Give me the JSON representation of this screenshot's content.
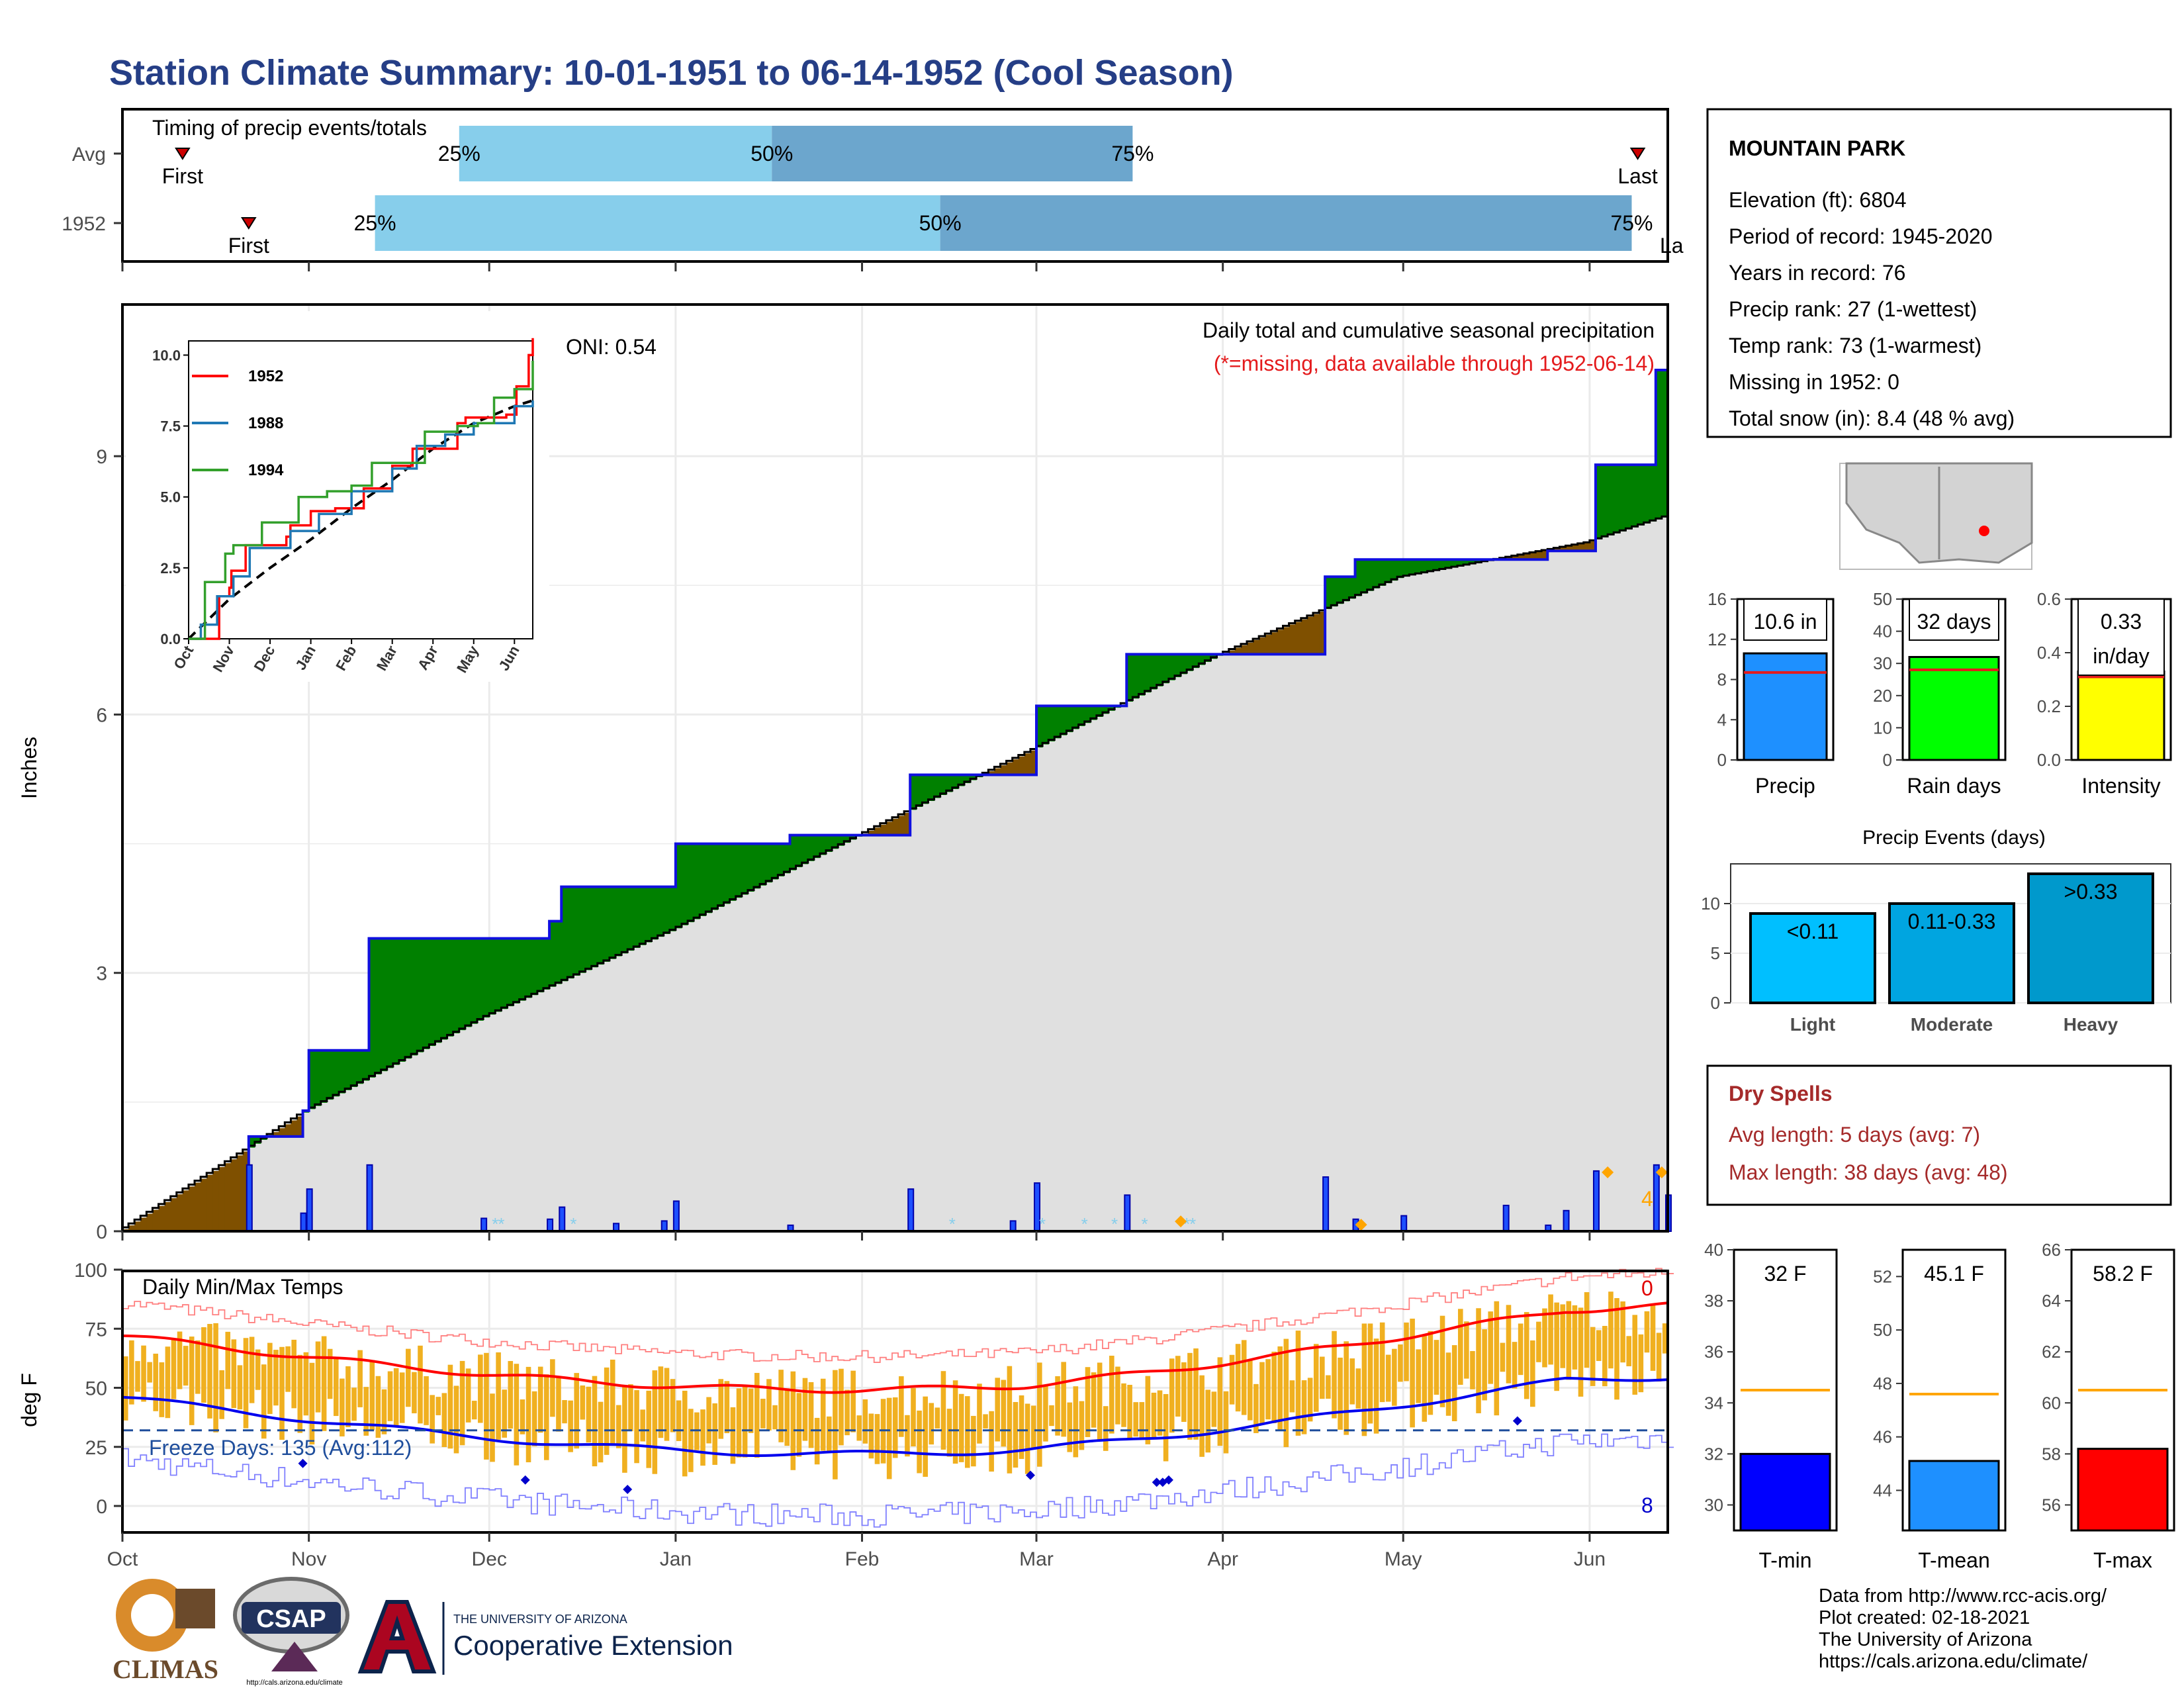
{
  "title": "Station Climate Summary: 10-01-1951 to 06-14-1952 (Cool Season)",
  "colors": {
    "title": "#253e86",
    "precip_obs": "#0000ff",
    "surplus": "#008000",
    "deficit": "#7f4f00",
    "clim": "#e0e0e0",
    "tmax": "#ff0000",
    "tmin": "#0000ff",
    "temp_bar": "#f0b020",
    "dry": "#a52a2a"
  },
  "timing": {
    "heading": "Timing of precip events/totals",
    "rows": [
      {
        "label": "Avg",
        "first": "First",
        "p25": "25%",
        "p50": "50%",
        "p75": "75%",
        "last": "Last",
        "first_day": 10,
        "p25_day": 56,
        "p50_day": 108,
        "p75_day": 168,
        "last_day": 252
      },
      {
        "label": "1952",
        "first": "First",
        "p25": "25%",
        "p50": "50%",
        "p75": "75%",
        "last": "Last",
        "first_day": 21,
        "p25_day": 42,
        "p50_day": 136,
        "p75_day": 251,
        "last_day": 261
      }
    ]
  },
  "precip": {
    "ylabel": "Inches",
    "note": "Daily total and cumulative seasonal precipitation",
    "missing_note": "(*=missing, data available through 1952-06-14)",
    "oni": "ONI: 0.54",
    "snow_note": "4",
    "yticks": [
      "0",
      "3",
      "6",
      "9"
    ],
    "months": [
      "Oct",
      "Nov",
      "Dec",
      "Jan",
      "Feb",
      "Mar",
      "Apr",
      "May",
      "Jun"
    ]
  },
  "inset": {
    "yticks": [
      "0.0",
      "2.5",
      "5.0",
      "7.5",
      "10.0"
    ],
    "months": [
      "Oct",
      "Nov",
      "Dec",
      "Jan",
      "Feb",
      "Mar",
      "Apr",
      "May",
      "Jun"
    ],
    "legend": [
      {
        "name": "1952",
        "color": "#ff0000"
      },
      {
        "name": "1988",
        "color": "#1f78b4"
      },
      {
        "name": "1994",
        "color": "#33a02c"
      }
    ]
  },
  "temps": {
    "ylabel": "deg F",
    "heading": "Daily Min/Max Temps",
    "freeze": "Freeze Days: 135 (Avg:112)",
    "max_count": "0",
    "min_count": "8",
    "yticks": [
      "0",
      "25",
      "50",
      "75",
      "100"
    ],
    "months": [
      "Oct",
      "Nov",
      "Dec",
      "Jan",
      "Feb",
      "Mar",
      "Apr",
      "May",
      "Jun"
    ]
  },
  "station": {
    "name": "MOUNTAIN PARK",
    "lines": [
      "Elevation (ft): 6804",
      "Period of record: 1945-2020",
      "Years in record: 76",
      "Precip rank: 27 (1-wettest)",
      "Temp rank: 73 (1-warmest)",
      "Missing in 1952: 0",
      "Total snow (in): 8.4 (48 % avg)"
    ]
  },
  "summary_bars": [
    {
      "name": "Precip",
      "label": "10.6 in",
      "value": 10.6,
      "avg": 8.7,
      "ymax": 16,
      "ticks": [
        "0",
        "4",
        "8",
        "12",
        "16"
      ],
      "color": "#1e90ff"
    },
    {
      "name": "Rain days",
      "label": "32 days",
      "value": 32,
      "avg": 28,
      "ymax": 50,
      "ticks": [
        "0",
        "10",
        "20",
        "30",
        "40",
        "50"
      ],
      "color": "#00ff00"
    },
    {
      "name": "Intensity",
      "label": "0.33",
      "label2": "in/day",
      "value": 0.33,
      "avg": 0.31,
      "ymax": 0.6,
      "ticks": [
        "0.0",
        "0.2",
        "0.4",
        "0.6"
      ],
      "color": "#ffff00"
    }
  ],
  "events": {
    "title": "Precip Events (days)",
    "ticks": [
      "0",
      "5",
      "10"
    ],
    "bars": [
      {
        "name": "Light",
        "label": "<0.11",
        "value": 9,
        "color": "#00bfff"
      },
      {
        "name": "Moderate",
        "label": "0.11-0.33",
        "value": 10,
        "color": "#00a5e0"
      },
      {
        "name": "Heavy",
        "label": ">0.33",
        "value": 13,
        "color": "#0099cc"
      }
    ]
  },
  "dry": {
    "title": "Dry Spells",
    "avg": "Avg length: 5 days (avg: 7)",
    "max": "Max length: 38 days (avg: 48)"
  },
  "temp_bars": [
    {
      "name": "T-min",
      "label": "32 F",
      "value": 32,
      "avg": 34.5,
      "ymin": 29,
      "ymax": 40,
      "ticks": [
        "30",
        "32",
        "34",
        "36",
        "38",
        "40"
      ],
      "color": "#0000ff"
    },
    {
      "name": "T-mean",
      "label": "45.1 F",
      "value": 45.1,
      "avg": 47.6,
      "ymin": 42.5,
      "ymax": 53,
      "ticks": [
        "44",
        "46",
        "48",
        "50",
        "52"
      ],
      "color": "#1e90ff"
    },
    {
      "name": "T-max",
      "label": "58.2 F",
      "value": 58.2,
      "avg": 60.5,
      "ymin": 55,
      "ymax": 66,
      "ticks": [
        "56",
        "58",
        "60",
        "62",
        "64",
        "66"
      ],
      "color": "#ff0000"
    }
  ],
  "credits": [
    "Data from http://www.rcc-acis.org/",
    "Plot created: 02-18-2021",
    "The University of Arizona",
    "https://cals.arizona.edu/climate/"
  ],
  "logos": {
    "climas": "CLIMAS",
    "csap": "CSAP",
    "csap_url": "http://cals.arizona.edu/climate",
    "ua_small": "THE UNIVERSITY OF ARIZONA",
    "ua_big": "Cooperative Extension"
  },
  "chart_data": {
    "type": "area",
    "title": "Daily total and cumulative seasonal precipitation",
    "ylabel": "Inches",
    "ylim": [
      0,
      10.6
    ],
    "x_dates_start": "1951-10-01",
    "cumulative_observed": [
      {
        "x": "1951-10-01",
        "y": 0.0
      },
      {
        "x": "1951-10-22",
        "y": 1.1
      },
      {
        "x": "1951-10-31",
        "y": 1.4
      },
      {
        "x": "1951-11-01",
        "y": 2.1
      },
      {
        "x": "1951-11-11",
        "y": 3.4
      },
      {
        "x": "1951-12-11",
        "y": 3.6
      },
      {
        "x": "1951-12-13",
        "y": 4.0
      },
      {
        "x": "1952-01-01",
        "y": 4.5
      },
      {
        "x": "1952-01-20",
        "y": 4.6
      },
      {
        "x": "1952-02-09",
        "y": 5.3
      },
      {
        "x": "1952-03-01",
        "y": 6.1
      },
      {
        "x": "1952-03-16",
        "y": 6.7
      },
      {
        "x": "1952-04-18",
        "y": 7.6
      },
      {
        "x": "1952-04-23",
        "y": 7.8
      },
      {
        "x": "1952-05-25",
        "y": 7.9
      },
      {
        "x": "1952-06-02",
        "y": 8.9
      },
      {
        "x": "1952-06-12",
        "y": 10.0
      },
      {
        "x": "1952-06-14",
        "y": 10.6
      }
    ],
    "cumulative_average": [
      {
        "x": "1951-10-01",
        "y": 0.0
      },
      {
        "x": "1951-11-01",
        "y": 1.4
      },
      {
        "x": "1951-12-01",
        "y": 2.5
      },
      {
        "x": "1952-01-01",
        "y": 3.5
      },
      {
        "x": "1952-02-01",
        "y": 4.6
      },
      {
        "x": "1952-03-01",
        "y": 5.6
      },
      {
        "x": "1952-04-01",
        "y": 6.7
      },
      {
        "x": "1952-05-01",
        "y": 7.6
      },
      {
        "x": "1952-06-01",
        "y": 8.0
      },
      {
        "x": "1952-06-14",
        "y": 8.3
      }
    ]
  }
}
